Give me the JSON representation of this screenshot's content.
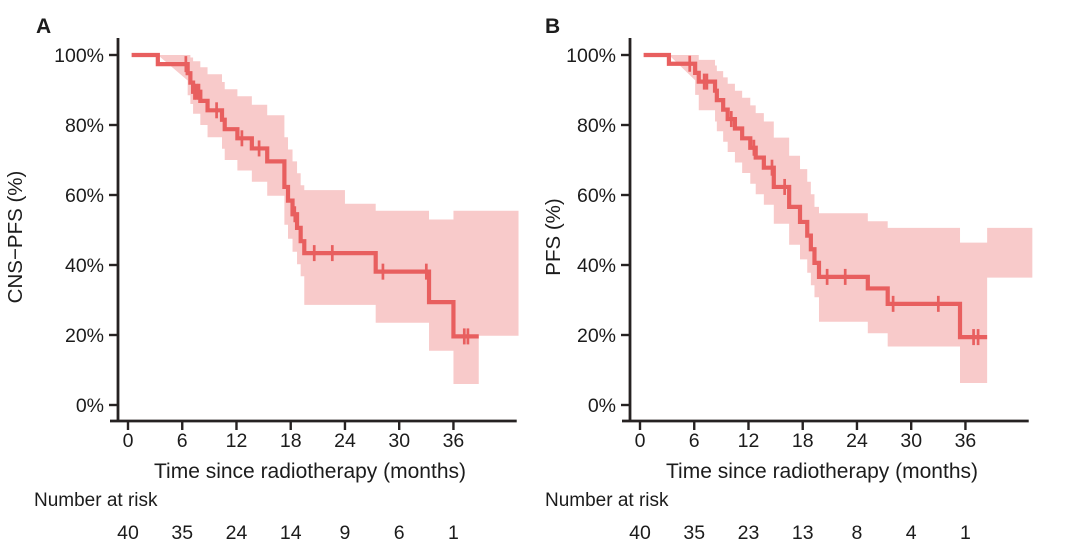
{
  "chart_data": {
    "type": "line",
    "subtype": "kaplan-meier-survival",
    "xlabel_shared": "Time since radiotherapy (months)",
    "colors": {
      "line": "#e85f5f",
      "band": "#f8caca",
      "axis": "#262222",
      "text": "#1c1c1c"
    },
    "panels": [
      {
        "label": "A",
        "ylabel": "CNS−PFS (%)",
        "xlabel": "Time since radiotherapy (months)",
        "risk_label": "Number at risk",
        "xlim": [
          0,
          43
        ],
        "ylim": [
          0,
          100
        ],
        "xticks": [
          {
            "value": 0,
            "label": "0"
          },
          {
            "value": 6,
            "label": "6"
          },
          {
            "value": 12,
            "label": "12"
          },
          {
            "value": 18,
            "label": "18"
          },
          {
            "value": 24,
            "label": "24"
          },
          {
            "value": 30,
            "label": "30"
          },
          {
            "value": 36,
            "label": "36"
          }
        ],
        "yticks": [
          {
            "value": 100,
            "label": "100%"
          },
          {
            "value": 80,
            "label": "80%"
          },
          {
            "value": 60,
            "label": "60%"
          },
          {
            "value": 40,
            "label": "40%"
          },
          {
            "value": 20,
            "label": "20%"
          },
          {
            "value": 0,
            "label": "0%"
          }
        ],
        "risk_counts": [
          "40",
          "35",
          "24",
          "14",
          "9",
          "6",
          "1"
        ],
        "curve": [
          [
            0.4,
            100
          ],
          [
            3.3,
            97.4
          ],
          [
            6.6,
            94.8
          ],
          [
            6.9,
            92.1
          ],
          [
            7.2,
            89.5
          ],
          [
            8.0,
            86.9
          ],
          [
            8.8,
            84.2
          ],
          [
            10.4,
            81.5
          ],
          [
            10.7,
            78.8
          ],
          [
            12.1,
            76.2
          ],
          [
            13.7,
            73.3
          ],
          [
            15.4,
            69.6
          ],
          [
            17.3,
            62.3
          ],
          [
            17.7,
            58.4
          ],
          [
            18.2,
            54.5
          ],
          [
            18.7,
            50.6
          ],
          [
            19.1,
            46.8
          ],
          [
            19.5,
            43.4
          ],
          [
            27.4,
            38.1
          ],
          [
            33.3,
            29.4
          ],
          [
            36.0,
            19.6
          ]
        ],
        "curve_end": 38.8,
        "censors": [
          [
            6.4,
            97.4
          ],
          [
            7.35,
            89.5
          ],
          [
            7.6,
            89.5
          ],
          [
            7.85,
            89.5
          ],
          [
            9.8,
            84.2
          ],
          [
            12.6,
            76.2
          ],
          [
            14.5,
            73.3
          ],
          [
            18.45,
            54.5
          ],
          [
            20.6,
            43.4
          ],
          [
            22.6,
            43.4
          ],
          [
            28.2,
            38.1
          ],
          [
            33.0,
            38.1
          ],
          [
            37.2,
            19.6
          ],
          [
            37.6,
            19.6
          ]
        ],
        "band": [
          [
            3.3,
            100,
            92.7
          ],
          [
            6.6,
            100,
            88.5
          ],
          [
            6.9,
            99.3,
            86.0
          ],
          [
            7.2,
            98.2,
            83.2
          ],
          [
            8.0,
            96.5,
            80.0
          ],
          [
            8.8,
            94.5,
            76.5
          ],
          [
            10.4,
            92.3,
            73.2
          ],
          [
            10.7,
            90.2,
            70.0
          ],
          [
            12.1,
            88.2,
            67.0
          ],
          [
            13.7,
            85.8,
            63.8
          ],
          [
            15.4,
            82.8,
            59.8
          ],
          [
            17.3,
            76.5,
            51.5
          ],
          [
            17.7,
            73.0,
            47.5
          ],
          [
            18.2,
            69.6,
            43.8
          ],
          [
            18.7,
            66.2,
            40.2
          ],
          [
            19.1,
            62.8,
            36.8
          ],
          [
            19.5,
            61.4,
            28.6
          ],
          [
            24.0,
            57.5,
            28.6
          ],
          [
            27.4,
            55.5,
            23.5
          ],
          [
            33.3,
            53.0,
            15.5
          ],
          [
            36.0,
            55.5,
            6.0
          ],
          [
            38.8,
            55.5,
            19.8
          ]
        ],
        "band_end": 43.2
      },
      {
        "label": "B",
        "ylabel": "PFS (%)",
        "xlabel": "Time since radiotherapy (months)",
        "risk_label": "Number at risk",
        "xlim": [
          0,
          43
        ],
        "ylim": [
          0,
          100
        ],
        "xticks": [
          {
            "value": 0,
            "label": "0"
          },
          {
            "value": 6,
            "label": "6"
          },
          {
            "value": 12,
            "label": "12"
          },
          {
            "value": 18,
            "label": "18"
          },
          {
            "value": 24,
            "label": "24"
          },
          {
            "value": 30,
            "label": "30"
          },
          {
            "value": 36,
            "label": "36"
          }
        ],
        "yticks": [
          {
            "value": 100,
            "label": "100%"
          },
          {
            "value": 80,
            "label": "80%"
          },
          {
            "value": 60,
            "label": "60%"
          },
          {
            "value": 40,
            "label": "40%"
          },
          {
            "value": 20,
            "label": "20%"
          },
          {
            "value": 0,
            "label": "0%"
          }
        ],
        "risk_counts": [
          "40",
          "35",
          "23",
          "13",
          "8",
          "4",
          "1"
        ],
        "curve": [
          [
            0.4,
            100
          ],
          [
            3.2,
            97.5
          ],
          [
            6.1,
            94.9
          ],
          [
            6.5,
            92.4
          ],
          [
            8.3,
            89.8
          ],
          [
            8.5,
            87.1
          ],
          [
            9.2,
            84.4
          ],
          [
            9.7,
            81.7
          ],
          [
            10.5,
            79.0
          ],
          [
            11.3,
            76.2
          ],
          [
            12.2,
            73.5
          ],
          [
            12.8,
            70.7
          ],
          [
            13.7,
            67.8
          ],
          [
            14.8,
            62.3
          ],
          [
            16.5,
            56.6
          ],
          [
            17.7,
            52.3
          ],
          [
            18.5,
            48.4
          ],
          [
            18.9,
            44.5
          ],
          [
            19.3,
            40.6
          ],
          [
            19.8,
            36.6
          ],
          [
            25.2,
            33.3
          ],
          [
            27.4,
            28.9
          ],
          [
            35.4,
            19.4
          ]
        ],
        "curve_end": 38.4,
        "censors": [
          [
            5.5,
            97.5
          ],
          [
            7.1,
            92.4
          ],
          [
            7.4,
            92.4
          ],
          [
            10.1,
            81.7
          ],
          [
            12.6,
            73.5
          ],
          [
            14.6,
            67.8
          ],
          [
            16.0,
            62.3
          ],
          [
            20.7,
            36.6
          ],
          [
            22.7,
            36.6
          ],
          [
            28.0,
            28.9
          ],
          [
            33.0,
            28.9
          ],
          [
            36.9,
            19.4
          ],
          [
            37.4,
            19.4
          ]
        ],
        "band": [
          [
            3.2,
            100,
            92.8
          ],
          [
            6.1,
            100,
            88.6
          ],
          [
            6.5,
            98.6,
            84.2
          ],
          [
            8.3,
            97.0,
            81.0
          ],
          [
            8.5,
            95.4,
            78.2
          ],
          [
            9.2,
            93.6,
            75.2
          ],
          [
            9.7,
            91.8,
            72.3
          ],
          [
            10.5,
            89.8,
            69.3
          ],
          [
            11.3,
            87.8,
            66.3
          ],
          [
            12.2,
            85.6,
            63.2
          ],
          [
            12.8,
            83.4,
            60.2
          ],
          [
            13.7,
            81.0,
            57.2
          ],
          [
            14.8,
            76.4,
            51.8
          ],
          [
            16.5,
            71.2,
            45.8
          ],
          [
            17.7,
            67.4,
            41.6
          ],
          [
            18.5,
            63.8,
            37.8
          ],
          [
            18.9,
            60.2,
            34.2
          ],
          [
            19.3,
            56.6,
            30.8
          ],
          [
            19.8,
            54.8,
            23.8
          ],
          [
            25.2,
            52.5,
            20.5
          ],
          [
            27.4,
            50.6,
            16.7
          ],
          [
            35.4,
            46.4,
            6.3
          ],
          [
            38.4,
            50.6,
            36.4
          ]
        ],
        "band_end": 43.4
      }
    ]
  }
}
